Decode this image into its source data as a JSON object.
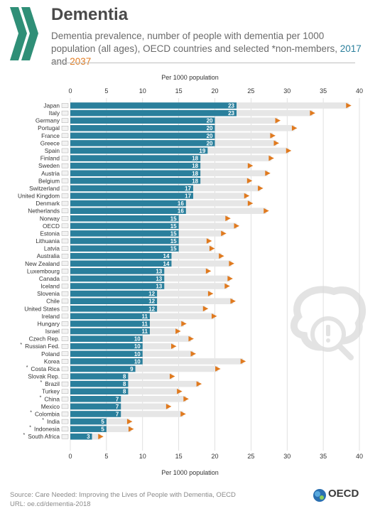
{
  "title": "Dementia",
  "subtitle_parts": {
    "main": "Dementia prevalence, number of people with dementia per 1000 population (all ages), OECD countries and selected *non-members, ",
    "year1": "2017",
    "and": " and ",
    "year2": "2037"
  },
  "colors": {
    "bar_2017": "#2a7f9c",
    "marker_2037": "#e07a1f",
    "track": "#e6e6e6"
  },
  "chart_data": {
    "type": "bar",
    "orientation": "horizontal",
    "x_axis_label": "Per 1000 population",
    "xlim": [
      0,
      40
    ],
    "ticks": [
      0,
      5,
      10,
      15,
      20,
      25,
      30,
      35,
      40
    ],
    "grid": true,
    "series": [
      {
        "name": "2017"
      },
      {
        "name": "2037"
      }
    ],
    "countries": [
      {
        "name": "Japan",
        "star": false,
        "v2017": 23,
        "v2037": 38.5
      },
      {
        "name": "Italy",
        "star": false,
        "v2017": 23,
        "v2037": 33.5
      },
      {
        "name": "Germany",
        "star": false,
        "v2017": 20,
        "v2037": 28.7
      },
      {
        "name": "Portugal",
        "star": false,
        "v2017": 20,
        "v2037": 31
      },
      {
        "name": "France",
        "star": false,
        "v2017": 20,
        "v2037": 28
      },
      {
        "name": "Greece",
        "star": false,
        "v2017": 20,
        "v2037": 28.5
      },
      {
        "name": "Spain",
        "star": false,
        "v2017": 19,
        "v2037": 30.2
      },
      {
        "name": "Finland",
        "star": false,
        "v2017": 18,
        "v2037": 27.8
      },
      {
        "name": "Sweden",
        "star": false,
        "v2017": 18,
        "v2037": 24.9
      },
      {
        "name": "Austria",
        "star": false,
        "v2017": 18,
        "v2037": 27.3
      },
      {
        "name": "Belgium",
        "star": false,
        "v2017": 18,
        "v2037": 24.8
      },
      {
        "name": "Switzerland",
        "star": false,
        "v2017": 17,
        "v2037": 26.3
      },
      {
        "name": "United Kingdom",
        "star": false,
        "v2017": 17,
        "v2037": 24.4
      },
      {
        "name": "Denmark",
        "star": false,
        "v2017": 16,
        "v2037": 24.9
      },
      {
        "name": "Netherlands",
        "star": false,
        "v2017": 16,
        "v2037": 27.1
      },
      {
        "name": "Norway",
        "star": false,
        "v2017": 15,
        "v2037": 21.8
      },
      {
        "name": "OECD",
        "star": false,
        "v2017": 15,
        "v2037": 23
      },
      {
        "name": "Estonia",
        "star": false,
        "v2017": 15,
        "v2037": 21.2
      },
      {
        "name": "Lithuania",
        "star": false,
        "v2017": 15,
        "v2037": 19.2
      },
      {
        "name": "Latvia",
        "star": false,
        "v2017": 15,
        "v2037": 19.6
      },
      {
        "name": "Australia",
        "star": false,
        "v2017": 14,
        "v2037": 20.9
      },
      {
        "name": "New Zealand",
        "star": false,
        "v2017": 14,
        "v2037": 22.3
      },
      {
        "name": "Luxembourg",
        "star": false,
        "v2017": 13,
        "v2037": 19.1
      },
      {
        "name": "Canada",
        "star": false,
        "v2017": 13,
        "v2037": 22.1
      },
      {
        "name": "Iceland",
        "star": false,
        "v2017": 13,
        "v2037": 21.7
      },
      {
        "name": "Slovenia",
        "star": false,
        "v2017": 12,
        "v2037": 19.4
      },
      {
        "name": "Chile",
        "star": false,
        "v2017": 12,
        "v2037": 22.5
      },
      {
        "name": "United States",
        "star": false,
        "v2017": 12,
        "v2037": 18.7
      },
      {
        "name": "Ireland",
        "star": false,
        "v2017": 11,
        "v2037": 19.9
      },
      {
        "name": "Hungary",
        "star": false,
        "v2017": 11,
        "v2037": 15.7
      },
      {
        "name": "Israel",
        "star": false,
        "v2017": 11,
        "v2037": 14.9
      },
      {
        "name": "Czech Rep.",
        "star": false,
        "v2017": 10,
        "v2037": 16.7
      },
      {
        "name": "Russian Fed.",
        "star": true,
        "v2017": 10,
        "v2037": 14.3
      },
      {
        "name": "Poland",
        "star": false,
        "v2017": 10,
        "v2037": 17
      },
      {
        "name": "Korea",
        "star": false,
        "v2017": 10,
        "v2037": 23.9
      },
      {
        "name": "Costa Rica",
        "star": true,
        "v2017": 9,
        "v2037": 20.4
      },
      {
        "name": "Slovak Rep.",
        "star": false,
        "v2017": 8,
        "v2037": 14.1
      },
      {
        "name": "Brazil",
        "star": true,
        "v2017": 8,
        "v2037": 17.8
      },
      {
        "name": "Turkey",
        "star": false,
        "v2017": 8,
        "v2037": 15.1
      },
      {
        "name": "China",
        "star": true,
        "v2017": 7,
        "v2037": 16
      },
      {
        "name": "Mexico",
        "star": false,
        "v2017": 7,
        "v2037": 13.6
      },
      {
        "name": "Colombia",
        "star": true,
        "v2017": 7,
        "v2037": 15.6
      },
      {
        "name": "India",
        "star": true,
        "v2017": 5,
        "v2037": 8.2
      },
      {
        "name": "Indonesia",
        "star": true,
        "v2017": 5,
        "v2037": 8.4
      },
      {
        "name": "South Africa",
        "star": true,
        "v2017": 3,
        "v2037": 4.2
      }
    ]
  },
  "source_line1": "Source: Care Needed: Improving the Lives of People with Dementia, OECD",
  "source_line2": "URL: oe.cd/dementia-2018",
  "oecd_label": "OECD"
}
